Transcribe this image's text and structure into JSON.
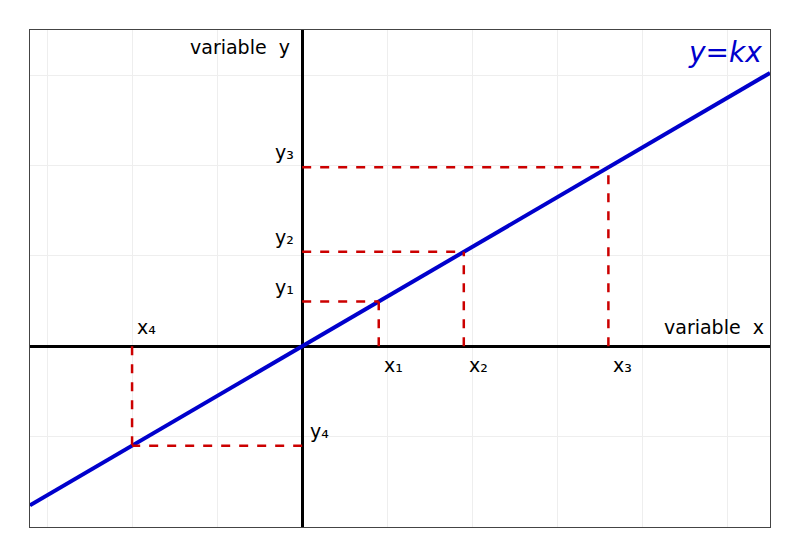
{
  "chart_data": {
    "type": "line",
    "series": [
      {
        "type": "line",
        "x": [
          -3.2,
          5.5
        ],
        "values": [
          -1.76,
          3.025
        ],
        "color": "#0000cc"
      },
      {
        "type": "projection",
        "x": [
          0.9,
          1.9,
          3.6,
          -2.0
        ],
        "values": [
          0.495,
          1.045,
          1.98,
          -1.1
        ],
        "color": "#cc0000",
        "line_style": "dashed",
        "x_labels": [
          "x₁",
          "x₂",
          "x₃",
          "x₄"
        ],
        "y_labels": [
          "y₁",
          "y₂",
          "y₃",
          "y₄"
        ]
      }
    ],
    "xlabel": "variable  x",
    "ylabel": "variable  y",
    "annotations": [
      {
        "text": "y=kx",
        "color": "#0000cc"
      }
    ],
    "xlim": [
      -3.2,
      5.5
    ],
    "ylim": [
      -2.0,
      3.5
    ],
    "xticks": [
      -3,
      -2,
      -1,
      0,
      1,
      2,
      3,
      4,
      5
    ],
    "yticks": [
      -2,
      -1,
      0,
      1,
      2,
      3
    ],
    "grid": true,
    "tick_labels": false
  }
}
